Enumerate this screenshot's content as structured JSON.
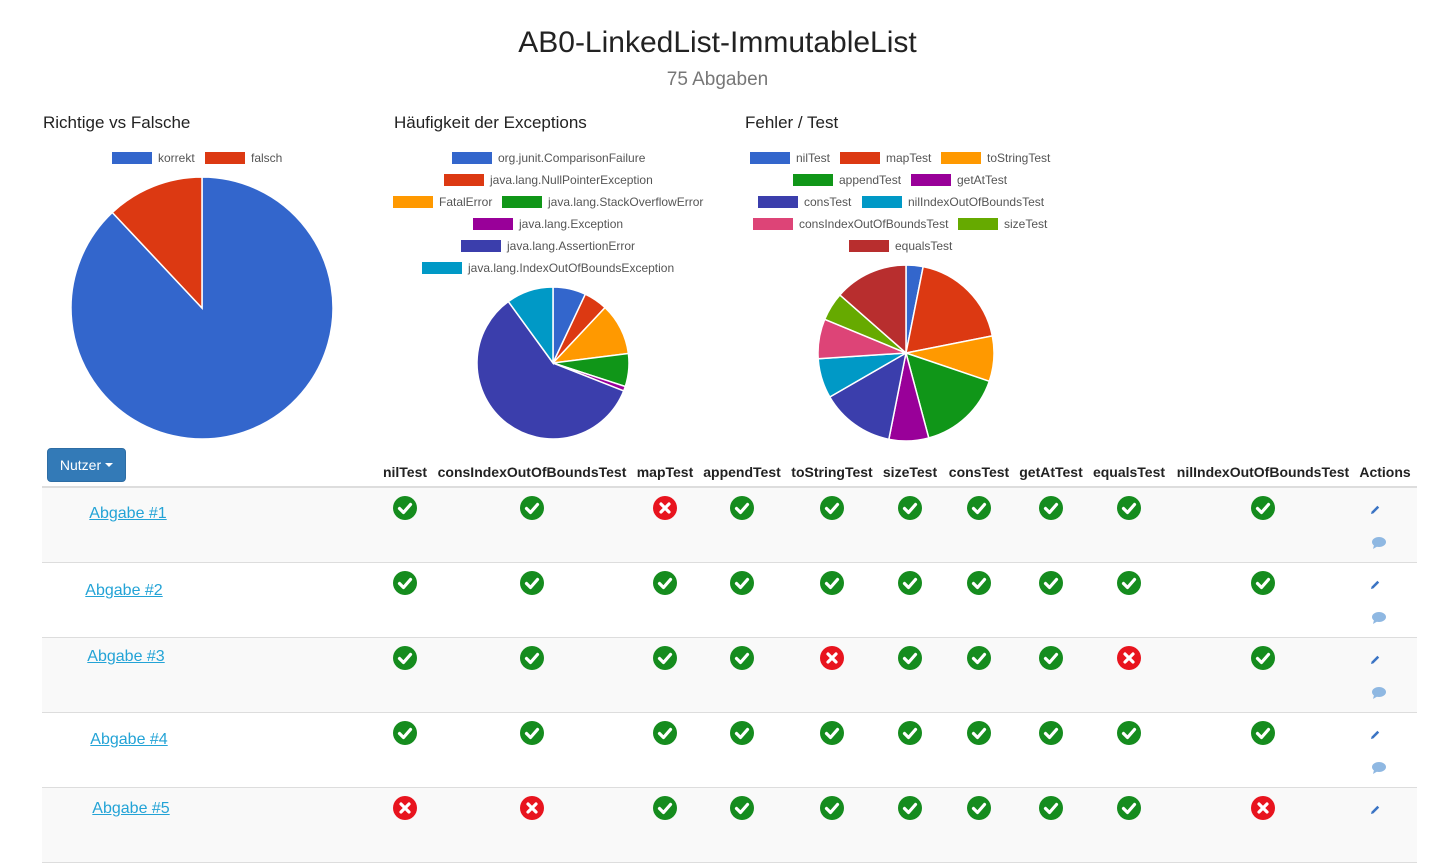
{
  "header": {
    "title": "AB0-LinkedList-ImmutableList",
    "subtitle": "75 Abgaben"
  },
  "charts": [
    {
      "type": "pie",
      "title": "Richtige vs Falsche",
      "slices": [
        {
          "label": "korrekt",
          "value": 88,
          "color": "#3366cc"
        },
        {
          "label": "falsch",
          "value": 12,
          "color": "#dc3912"
        }
      ]
    },
    {
      "type": "pie",
      "title": "Häufigkeit der Exceptions",
      "slices": [
        {
          "label": "org.junit.ComparisonFailure",
          "value": 7,
          "color": "#3366cc"
        },
        {
          "label": "java.lang.NullPointerException",
          "value": 5,
          "color": "#dc3912"
        },
        {
          "label": "FatalError",
          "value": 11,
          "color": "#ff9900"
        },
        {
          "label": "java.lang.StackOverflowError",
          "value": 7,
          "color": "#109618"
        },
        {
          "label": "java.lang.Exception",
          "value": 1,
          "color": "#990099"
        },
        {
          "label": "java.lang.AssertionError",
          "value": 59,
          "color": "#3b3eac"
        },
        {
          "label": "java.lang.IndexOutOfBoundsException",
          "value": 10,
          "color": "#0099c6"
        }
      ]
    },
    {
      "type": "pie",
      "title": "Fehler / Test",
      "slices": [
        {
          "label": "nilTest",
          "value": 3,
          "color": "#3366cc"
        },
        {
          "label": "mapTest",
          "value": 18,
          "color": "#dc3912"
        },
        {
          "label": "toStringTest",
          "value": 8,
          "color": "#ff9900"
        },
        {
          "label": "appendTest",
          "value": 15,
          "color": "#109618"
        },
        {
          "label": "getAtTest",
          "value": 7,
          "color": "#990099"
        },
        {
          "label": "consTest",
          "value": 13,
          "color": "#3b3eac"
        },
        {
          "label": "nilIndexOutOfBoundsTest",
          "value": 7,
          "color": "#0099c6"
        },
        {
          "label": "consIndexOutOfBoundsTest",
          "value": 7,
          "color": "#dd4477"
        },
        {
          "label": "sizeTest",
          "value": 5,
          "color": "#66aa00"
        },
        {
          "label": "equalsTest",
          "value": 13,
          "color": "#b82e2e"
        }
      ]
    }
  ],
  "toolbar": {
    "nutzer_label": "Nutzer"
  },
  "table": {
    "columns": [
      "nilTest",
      "consIndexOutOfBoundsTest",
      "mapTest",
      "appendTest",
      "toStringTest",
      "sizeTest",
      "consTest",
      "getAtTest",
      "equalsTest",
      "nilIndexOutOfBoundsTest",
      "Actions"
    ],
    "rows": [
      {
        "label": "Abgabe #1",
        "results": [
          "pass",
          "pass",
          "fail",
          "pass",
          "pass",
          "pass",
          "pass",
          "pass",
          "pass",
          "pass"
        ]
      },
      {
        "label": "Abgabe #2",
        "results": [
          "pass",
          "pass",
          "pass",
          "pass",
          "pass",
          "pass",
          "pass",
          "pass",
          "pass",
          "pass"
        ]
      },
      {
        "label": "Abgabe #3",
        "results": [
          "pass",
          "pass",
          "pass",
          "pass",
          "fail",
          "pass",
          "pass",
          "pass",
          "fail",
          "pass"
        ]
      },
      {
        "label": "Abgabe #4",
        "results": [
          "pass",
          "pass",
          "pass",
          "pass",
          "pass",
          "pass",
          "pass",
          "pass",
          "pass",
          "pass"
        ]
      },
      {
        "label": "Abgabe #5",
        "results": [
          "fail",
          "fail",
          "pass",
          "pass",
          "pass",
          "pass",
          "pass",
          "pass",
          "pass",
          "fail"
        ]
      }
    ]
  },
  "icons": {
    "pass": "check-circle-icon",
    "fail": "x-circle-icon",
    "edit": "pencil-icon",
    "comment": "comment-icon"
  },
  "colors": {
    "pass": "#158c1e",
    "fail": "#e8141e",
    "link": "#23a3d6",
    "button": "#337ab7"
  }
}
